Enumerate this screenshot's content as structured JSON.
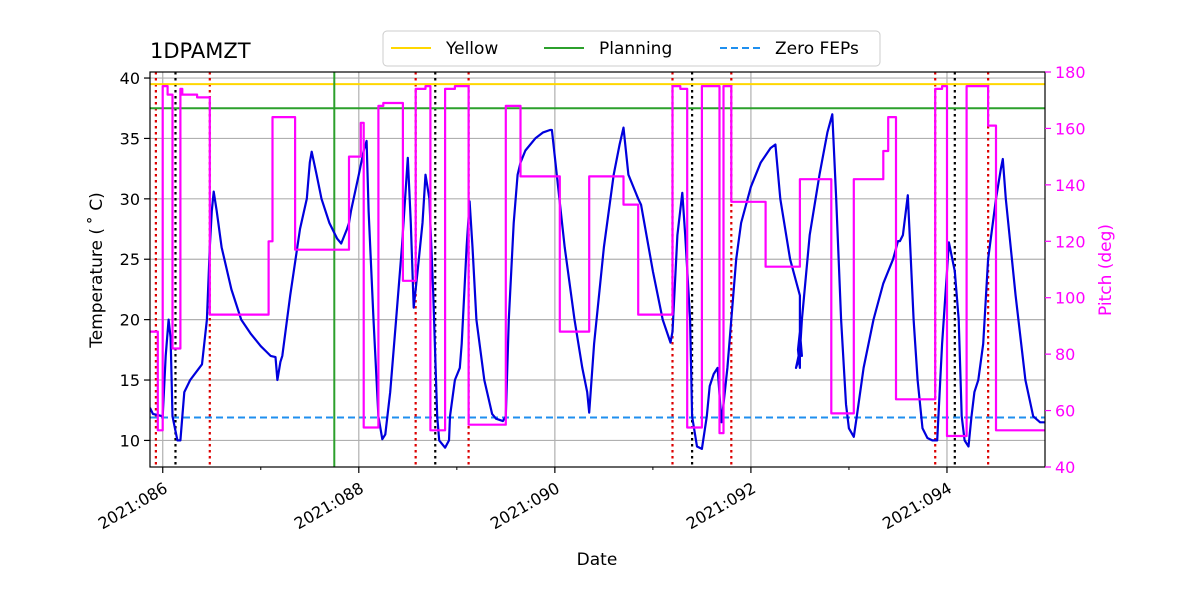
{
  "chart_data": {
    "type": "line",
    "title": "1DPAMZT",
    "xlabel": "Date",
    "ylabel": "Temperature ($^\\circ$C)",
    "ylabel_display": "Temperature ( ˚ C)",
    "y2label": "Pitch (deg)",
    "xlim": [
      85.87,
      95.0
    ],
    "ylim": [
      7.8,
      40.5
    ],
    "y2lim": [
      40,
      180
    ],
    "x_ticks": [
      {
        "value": 86,
        "label": "2021:086"
      },
      {
        "value": 88,
        "label": "2021:088"
      },
      {
        "value": 90,
        "label": "2021:090"
      },
      {
        "value": 92,
        "label": "2021:092"
      },
      {
        "value": 94,
        "label": "2021:094"
      }
    ],
    "x_minor_ticks": [
      87,
      89,
      91,
      93
    ],
    "y_ticks": [
      10,
      15,
      20,
      25,
      30,
      35,
      40
    ],
    "y2_ticks": [
      40,
      60,
      80,
      100,
      120,
      140,
      160,
      180
    ],
    "grid": true,
    "legend": {
      "position": "top-center",
      "entries": [
        {
          "label": "Yellow",
          "color": "#ffd700",
          "style": "solid"
        },
        {
          "label": "Planning",
          "color": "#2ca02c",
          "style": "solid"
        },
        {
          "label": "Zero FEPs",
          "color": "#1f8fef",
          "style": "dashed"
        }
      ]
    },
    "limits": {
      "yellow": 39.5,
      "planning": 37.5,
      "zero_feps": 11.9
    },
    "planning_vline_x": 87.75,
    "red_dotted_x": [
      85.93,
      86.48,
      88.58,
      89.12,
      91.2,
      91.8,
      93.88,
      94.42
    ],
    "black_dotted_x": [
      86.13,
      88.78,
      91.4,
      94.08
    ],
    "colors": {
      "temperature": "#0000dd",
      "pitch": "#ff00ff",
      "red_marker": "#dd0000",
      "black_marker": "#000000"
    },
    "series": [
      {
        "name": "1DPAMZT temperature",
        "axis": "left",
        "points": [
          [
            85.87,
            12.7
          ],
          [
            85.9,
            12.2
          ],
          [
            85.95,
            12.1
          ],
          [
            86.0,
            12.0
          ],
          [
            86.03,
            17.0
          ],
          [
            86.06,
            20.0
          ],
          [
            86.08,
            18.5
          ],
          [
            86.1,
            12.0
          ],
          [
            86.15,
            10.0
          ],
          [
            86.18,
            10.0
          ],
          [
            86.22,
            14.0
          ],
          [
            86.28,
            15.0
          ],
          [
            86.4,
            16.3
          ],
          [
            86.45,
            20.0
          ],
          [
            86.48,
            26.0
          ],
          [
            86.5,
            29.0
          ],
          [
            86.52,
            30.6
          ],
          [
            86.55,
            29.0
          ],
          [
            86.6,
            26.0
          ],
          [
            86.7,
            22.5
          ],
          [
            86.8,
            20.0
          ],
          [
            86.9,
            18.8
          ],
          [
            87.0,
            17.8
          ],
          [
            87.05,
            17.4
          ],
          [
            87.1,
            17.0
          ],
          [
            87.15,
            16.9
          ],
          [
            87.17,
            15.0
          ],
          [
            87.2,
            16.5
          ],
          [
            87.22,
            17.0
          ],
          [
            87.3,
            22.0
          ],
          [
            87.4,
            27.5
          ],
          [
            87.47,
            30.0
          ],
          [
            87.5,
            33.0
          ],
          [
            87.52,
            33.9
          ],
          [
            87.57,
            32.0
          ],
          [
            87.62,
            30.0
          ],
          [
            87.7,
            28.0
          ],
          [
            87.78,
            26.7
          ],
          [
            87.82,
            26.3
          ],
          [
            87.88,
            27.5
          ],
          [
            87.9,
            28.0
          ],
          [
            87.92,
            29.0
          ],
          [
            88.0,
            32.0
          ],
          [
            88.05,
            34.0
          ],
          [
            88.08,
            34.8
          ],
          [
            88.1,
            29.0
          ],
          [
            88.15,
            20.0
          ],
          [
            88.2,
            12.0
          ],
          [
            88.24,
            10.1
          ],
          [
            88.27,
            10.5
          ],
          [
            88.32,
            14.0
          ],
          [
            88.38,
            20.0
          ],
          [
            88.44,
            26.0
          ],
          [
            88.5,
            33.4
          ],
          [
            88.53,
            28.0
          ],
          [
            88.56,
            21.0
          ],
          [
            88.6,
            24.0
          ],
          [
            88.65,
            28.0
          ],
          [
            88.68,
            32.0
          ],
          [
            88.72,
            30.0
          ],
          [
            88.76,
            22.0
          ],
          [
            88.8,
            12.0
          ],
          [
            88.82,
            10.0
          ],
          [
            88.88,
            9.4
          ],
          [
            88.92,
            10.0
          ],
          [
            88.93,
            12.0
          ],
          [
            88.98,
            15.0
          ],
          [
            89.03,
            16.0
          ],
          [
            89.05,
            18.0
          ],
          [
            89.1,
            26.0
          ],
          [
            89.13,
            29.8
          ],
          [
            89.16,
            26.0
          ],
          [
            89.2,
            20.0
          ],
          [
            89.28,
            15.0
          ],
          [
            89.36,
            12.2
          ],
          [
            89.4,
            11.8
          ],
          [
            89.47,
            11.6
          ],
          [
            89.5,
            12.0
          ],
          [
            89.53,
            20.0
          ],
          [
            89.58,
            28.0
          ],
          [
            89.62,
            32.0
          ],
          [
            89.65,
            33.0
          ],
          [
            89.7,
            34.0
          ],
          [
            89.8,
            35.0
          ],
          [
            89.88,
            35.5
          ],
          [
            89.95,
            35.7
          ],
          [
            89.97,
            35.7
          ],
          [
            90.1,
            26.0
          ],
          [
            90.2,
            20.0
          ],
          [
            90.28,
            16.0
          ],
          [
            90.33,
            14.0
          ],
          [
            90.35,
            12.3
          ],
          [
            90.4,
            18.0
          ],
          [
            90.5,
            26.0
          ],
          [
            90.6,
            32.0
          ],
          [
            90.66,
            34.5
          ],
          [
            90.7,
            35.9
          ],
          [
            90.75,
            32.0
          ],
          [
            90.85,
            30.0
          ],
          [
            90.88,
            29.5
          ],
          [
            91.0,
            24.0
          ],
          [
            91.1,
            20.0
          ],
          [
            91.18,
            18.1
          ],
          [
            91.2,
            19.0
          ],
          [
            91.25,
            27.0
          ],
          [
            91.3,
            30.5
          ],
          [
            91.33,
            27.0
          ],
          [
            91.38,
            20.0
          ],
          [
            91.4,
            12.0
          ],
          [
            91.45,
            9.5
          ],
          [
            91.5,
            9.3
          ],
          [
            91.55,
            12.0
          ],
          [
            91.58,
            14.5
          ],
          [
            91.62,
            15.5
          ],
          [
            91.66,
            16.0
          ],
          [
            91.7,
            11.5
          ],
          [
            91.72,
            13.0
          ],
          [
            91.76,
            16.0
          ],
          [
            91.8,
            20.0
          ],
          [
            91.85,
            25.0
          ],
          [
            91.9,
            28.0
          ],
          [
            92.0,
            31.0
          ],
          [
            92.1,
            33.0
          ],
          [
            92.2,
            34.2
          ],
          [
            92.25,
            34.5
          ],
          [
            92.3,
            30.0
          ],
          [
            92.4,
            25.0
          ],
          [
            92.5,
            22.0
          ],
          [
            92.5,
            20.0
          ],
          [
            92.5,
            18.0
          ],
          [
            92.5,
            17.0
          ],
          [
            92.5,
            16.0
          ],
          [
            92.48,
            17.5
          ],
          [
            92.5,
            19.0
          ],
          [
            92.52,
            17.0
          ],
          [
            92.5,
            18.0
          ],
          [
            92.5,
            17.2
          ],
          [
            92.5,
            16.8
          ],
          [
            92.48,
            16.5
          ],
          [
            92.5,
            17.5
          ],
          [
            92.46,
            16.0
          ],
          [
            92.48,
            16.5
          ],
          [
            92.5,
            17.5
          ],
          [
            92.46,
            16.0
          ],
          [
            92.5,
            17.0
          ],
          [
            92.49,
            17.2
          ],
          [
            92.5,
            17.3
          ],
          [
            92.52,
            20.0
          ],
          [
            92.6,
            27.0
          ],
          [
            92.7,
            32.0
          ],
          [
            92.78,
            35.5
          ],
          [
            92.83,
            37.0
          ],
          [
            92.87,
            30.0
          ],
          [
            92.92,
            20.0
          ],
          [
            92.97,
            13.0
          ],
          [
            93.0,
            11.0
          ],
          [
            93.05,
            10.3
          ],
          [
            93.08,
            12.0
          ],
          [
            93.15,
            16.0
          ],
          [
            93.25,
            20.0
          ],
          [
            93.35,
            23.0
          ],
          [
            93.45,
            25.0
          ],
          [
            93.5,
            26.5
          ],
          [
            93.52,
            26.5
          ],
          [
            93.55,
            27.0
          ],
          [
            93.6,
            30.3
          ],
          [
            93.62,
            27.0
          ],
          [
            93.66,
            20.0
          ],
          [
            93.7,
            15.0
          ],
          [
            93.75,
            11.0
          ],
          [
            93.8,
            10.2
          ],
          [
            93.85,
            10.0
          ],
          [
            93.9,
            10.0
          ],
          [
            93.95,
            18.0
          ],
          [
            94.0,
            24.0
          ],
          [
            94.02,
            26.4
          ],
          [
            94.08,
            24.0
          ],
          [
            94.12,
            20.0
          ],
          [
            94.15,
            12.0
          ],
          [
            94.18,
            10.0
          ],
          [
            94.22,
            9.5
          ],
          [
            94.25,
            12.0
          ],
          [
            94.28,
            14.0
          ],
          [
            94.32,
            15.0
          ],
          [
            94.37,
            18.0
          ],
          [
            94.42,
            25.0
          ],
          [
            94.5,
            30.0
          ],
          [
            94.55,
            32.5
          ],
          [
            94.57,
            33.3
          ],
          [
            94.6,
            30.0
          ],
          [
            94.7,
            22.0
          ],
          [
            94.8,
            15.0
          ],
          [
            94.88,
            12.0
          ],
          [
            94.95,
            11.5
          ],
          [
            95.0,
            11.5
          ]
        ]
      },
      {
        "name": "Pitch",
        "axis": "right",
        "points": [
          [
            85.87,
            88
          ],
          [
            85.95,
            88
          ],
          [
            85.95,
            53
          ],
          [
            86.0,
            53
          ],
          [
            86.0,
            175
          ],
          [
            86.05,
            175
          ],
          [
            86.05,
            172
          ],
          [
            86.1,
            172
          ],
          [
            86.1,
            82
          ],
          [
            86.18,
            82
          ],
          [
            86.18,
            174
          ],
          [
            86.2,
            174
          ],
          [
            86.2,
            172
          ],
          [
            86.35,
            172
          ],
          [
            86.35,
            171
          ],
          [
            86.48,
            171
          ],
          [
            86.48,
            94
          ],
          [
            87.08,
            94
          ],
          [
            87.08,
            120
          ],
          [
            87.12,
            120
          ],
          [
            87.12,
            164
          ],
          [
            87.35,
            164
          ],
          [
            87.35,
            117
          ],
          [
            87.75,
            117
          ],
          [
            87.75,
            117
          ],
          [
            87.9,
            117
          ],
          [
            87.9,
            150
          ],
          [
            88.02,
            150
          ],
          [
            88.02,
            162
          ],
          [
            88.05,
            162
          ],
          [
            88.05,
            54
          ],
          [
            88.2,
            54
          ],
          [
            88.2,
            168
          ],
          [
            88.25,
            168
          ],
          [
            88.25,
            169
          ],
          [
            88.45,
            169
          ],
          [
            88.45,
            106
          ],
          [
            88.58,
            106
          ],
          [
            88.58,
            174
          ],
          [
            88.68,
            174
          ],
          [
            88.68,
            175
          ],
          [
            88.73,
            175
          ],
          [
            88.73,
            53
          ],
          [
            88.88,
            53
          ],
          [
            88.88,
            174
          ],
          [
            88.98,
            174
          ],
          [
            88.98,
            175
          ],
          [
            89.12,
            175
          ],
          [
            89.12,
            55
          ],
          [
            89.5,
            55
          ],
          [
            89.5,
            168
          ],
          [
            89.65,
            168
          ],
          [
            89.65,
            143
          ],
          [
            90.05,
            143
          ],
          [
            90.05,
            88
          ],
          [
            90.35,
            88
          ],
          [
            90.35,
            143
          ],
          [
            90.7,
            143
          ],
          [
            90.7,
            133
          ],
          [
            90.85,
            133
          ],
          [
            90.85,
            94
          ],
          [
            91.2,
            94
          ],
          [
            91.2,
            175
          ],
          [
            91.28,
            175
          ],
          [
            91.28,
            174
          ],
          [
            91.35,
            174
          ],
          [
            91.35,
            54
          ],
          [
            91.5,
            54
          ],
          [
            91.5,
            175
          ],
          [
            91.68,
            175
          ],
          [
            91.68,
            52
          ],
          [
            91.72,
            52
          ],
          [
            91.72,
            175
          ],
          [
            91.8,
            175
          ],
          [
            91.8,
            134
          ],
          [
            92.15,
            134
          ],
          [
            92.15,
            111
          ],
          [
            92.5,
            111
          ],
          [
            92.5,
            142
          ],
          [
            92.82,
            142
          ],
          [
            92.82,
            59
          ],
          [
            93.05,
            59
          ],
          [
            93.05,
            142
          ],
          [
            93.35,
            142
          ],
          [
            93.35,
            152
          ],
          [
            93.4,
            152
          ],
          [
            93.4,
            164
          ],
          [
            93.48,
            164
          ],
          [
            93.48,
            64
          ],
          [
            93.88,
            64
          ],
          [
            93.88,
            174
          ],
          [
            93.95,
            174
          ],
          [
            93.95,
            175
          ],
          [
            94.0,
            175
          ],
          [
            94.0,
            51
          ],
          [
            94.2,
            51
          ],
          [
            94.2,
            175
          ],
          [
            94.42,
            175
          ],
          [
            94.42,
            161
          ],
          [
            94.5,
            161
          ],
          [
            94.5,
            53
          ],
          [
            95.0,
            53
          ]
        ]
      }
    ]
  }
}
